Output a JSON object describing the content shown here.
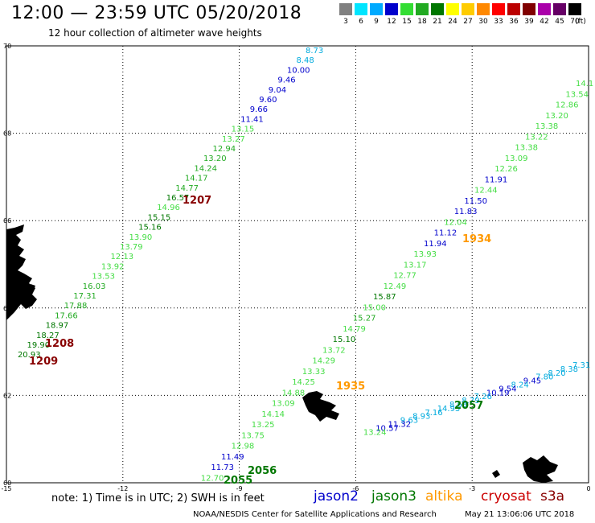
{
  "header": {
    "title": "12:00 — 23:59 UTC 05/20/2018",
    "subtitle": "12 hour collection of altimeter wave heights"
  },
  "legend": {
    "unit": "(ft)",
    "bins": [
      {
        "label": "3",
        "color": "#808080"
      },
      {
        "label": "6",
        "color": "#00e5ff"
      },
      {
        "label": "9",
        "color": "#00aaff"
      },
      {
        "label": "12",
        "color": "#0000cc"
      },
      {
        "label": "15",
        "color": "#33dd33"
      },
      {
        "label": "18",
        "color": "#22aa22"
      },
      {
        "label": "21",
        "color": "#007700"
      },
      {
        "label": "24",
        "color": "#ffff00"
      },
      {
        "label": "27",
        "color": "#ffcc00"
      },
      {
        "label": "30",
        "color": "#ff8800"
      },
      {
        "label": "33",
        "color": "#ff0000"
      },
      {
        "label": "36",
        "color": "#bb0000"
      },
      {
        "label": "39",
        "color": "#800000"
      },
      {
        "label": "42",
        "color": "#aa00aa"
      },
      {
        "label": "45",
        "color": "#660066"
      },
      {
        "label": "70",
        "color": "#000000"
      }
    ]
  },
  "map": {
    "lon_range": [
      -15,
      0
    ],
    "lat_range": [
      60,
      70
    ],
    "lon_ticks": [
      "-15",
      "-12",
      "-9",
      "-6",
      "-3",
      "0"
    ],
    "lat_ticks": [
      "70",
      "68",
      "66",
      "64",
      "62",
      "60"
    ],
    "wave_colors": {
      "light_green": "#44dd44",
      "green": "#22aa22",
      "dark_green": "#007700",
      "blue": "#0000cc",
      "cyan": "#00aadd",
      "dark_red": "#880000",
      "orange": "#ff9900",
      "land": "#000000"
    }
  },
  "tracks": {
    "west": [
      {
        "v": "8.73",
        "c": "cyan"
      },
      {
        "v": "8.48",
        "c": "cyan"
      },
      {
        "v": "10.00",
        "c": "blue"
      },
      {
        "v": "9.46",
        "c": "blue"
      },
      {
        "v": "9.04",
        "c": "blue"
      },
      {
        "v": "9.60",
        "c": "blue"
      },
      {
        "v": "9.66",
        "c": "blue"
      },
      {
        "v": "11.41",
        "c": "blue"
      },
      {
        "v": "13.15",
        "c": "light_green"
      },
      {
        "v": "13.27",
        "c": "light_green"
      },
      {
        "v": "12.94",
        "c": "green"
      },
      {
        "v": "13.20",
        "c": "green"
      },
      {
        "v": "14.24",
        "c": "green"
      },
      {
        "v": "14.17",
        "c": "green"
      },
      {
        "v": "14.77",
        "c": "green"
      },
      {
        "v": "16.57",
        "c": "dark_green"
      },
      {
        "v": "14.96",
        "c": "light_green"
      },
      {
        "v": "15.15",
        "c": "dark_green"
      },
      {
        "v": "15.16",
        "c": "dark_green"
      },
      {
        "v": "13.90",
        "c": "light_green"
      },
      {
        "v": "13.79",
        "c": "light_green"
      },
      {
        "v": "12.13",
        "c": "light_green"
      },
      {
        "v": "13.92",
        "c": "light_green"
      },
      {
        "v": "13.53",
        "c": "light_green"
      },
      {
        "v": "16.03",
        "c": "green"
      },
      {
        "v": "17.31",
        "c": "green"
      },
      {
        "v": "17.88",
        "c": "green"
      },
      {
        "v": "17.66",
        "c": "green"
      },
      {
        "v": "18.97",
        "c": "dark_green"
      },
      {
        "v": "18.27",
        "c": "dark_green"
      },
      {
        "v": "19.90",
        "c": "dark_green"
      },
      {
        "v": "20.93",
        "c": "dark_green"
      }
    ],
    "east": [
      {
        "v": "14.1",
        "c": "light_green"
      },
      {
        "v": "13.54",
        "c": "light_green"
      },
      {
        "v": "12.86",
        "c": "light_green"
      },
      {
        "v": "13.20",
        "c": "light_green"
      },
      {
        "v": "13.38",
        "c": "light_green"
      },
      {
        "v": "13.22",
        "c": "light_green"
      },
      {
        "v": "13.38",
        "c": "light_green"
      },
      {
        "v": "13.09",
        "c": "light_green"
      },
      {
        "v": "12.26",
        "c": "light_green"
      },
      {
        "v": "11.91",
        "c": "blue"
      },
      {
        "v": "12.44",
        "c": "light_green"
      },
      {
        "v": "11.50",
        "c": "blue"
      },
      {
        "v": "11.83",
        "c": "blue"
      },
      {
        "v": "12.04",
        "c": "light_green"
      },
      {
        "v": "11.12",
        "c": "blue"
      },
      {
        "v": "11.94",
        "c": "blue"
      },
      {
        "v": "13.93",
        "c": "light_green"
      },
      {
        "v": "13.17",
        "c": "light_green"
      },
      {
        "v": "12.77",
        "c": "light_green"
      },
      {
        "v": "12.49",
        "c": "light_green"
      },
      {
        "v": "15.87",
        "c": "dark_green"
      },
      {
        "v": "15.00",
        "c": "light_green"
      },
      {
        "v": "15.27",
        "c": "green"
      },
      {
        "v": "14.79",
        "c": "light_green"
      },
      {
        "v": "15.10",
        "c": "dark_green"
      },
      {
        "v": "13.72",
        "c": "light_green"
      },
      {
        "v": "14.29",
        "c": "light_green"
      },
      {
        "v": "13.33",
        "c": "light_green"
      },
      {
        "v": "14.25",
        "c": "light_green"
      },
      {
        "v": "14.88",
        "c": "light_green"
      },
      {
        "v": "13.09",
        "c": "light_green"
      },
      {
        "v": "14.14",
        "c": "light_green"
      },
      {
        "v": "13.25",
        "c": "light_green"
      },
      {
        "v": "13.75",
        "c": "light_green"
      },
      {
        "v": "12.98",
        "c": "light_green"
      },
      {
        "v": "11.49",
        "c": "blue"
      },
      {
        "v": "11.73",
        "c": "blue"
      },
      {
        "v": "12.70",
        "c": "light_green"
      }
    ],
    "southeast": [
      {
        "v": "7.31",
        "c": "cyan"
      },
      {
        "v": "8.38",
        "c": "cyan"
      },
      {
        "v": "8.20",
        "c": "cyan"
      },
      {
        "v": "7.80",
        "c": "cyan"
      },
      {
        "v": "9.45",
        "c": "blue"
      },
      {
        "v": "8.24",
        "c": "cyan"
      },
      {
        "v": "9.54",
        "c": "blue"
      },
      {
        "v": "10.19",
        "c": "blue"
      },
      {
        "v": "7.26",
        "c": "cyan"
      },
      {
        "v": "8.79",
        "c": "cyan"
      },
      {
        "v": "8.68",
        "c": "cyan"
      },
      {
        "v": "14.95",
        "c": "cyan"
      },
      {
        "v": "7.16",
        "c": "cyan"
      },
      {
        "v": "8.93",
        "c": "cyan"
      },
      {
        "v": "9.63",
        "c": "cyan"
      },
      {
        "v": "11.32",
        "c": "blue"
      },
      {
        "v": "10.57",
        "c": "blue"
      },
      {
        "v": "13.24",
        "c": "light_green"
      }
    ]
  },
  "pass_times": [
    {
      "t": "1207",
      "c": "dark_red"
    },
    {
      "t": "1208",
      "c": "dark_red"
    },
    {
      "t": "1209",
      "c": "dark_red"
    },
    {
      "t": "1934",
      "c": "orange"
    },
    {
      "t": "1935",
      "c": "orange"
    },
    {
      "t": "2057",
      "c": "dark_green"
    },
    {
      "t": "2055",
      "c": "dark_green"
    },
    {
      "t": "2056",
      "c": "dark_green"
    }
  ],
  "footer": {
    "note": "note: 1) Time is in UTC; 2) SWH is in feet",
    "satellites": [
      {
        "name": "jason2",
        "color": "#0000cc"
      },
      {
        "name": "jason3",
        "color": "#007700"
      },
      {
        "name": "altika",
        "color": "#ff9900"
      },
      {
        "name": "cryosat",
        "color": "#cc0000"
      },
      {
        "name": "s3a",
        "color": "#880000"
      }
    ],
    "credit": "NOAA/NESDIS Center for Satellite Applications and Research",
    "timestamp": "May 21 13:06:06 UTC 2018"
  }
}
